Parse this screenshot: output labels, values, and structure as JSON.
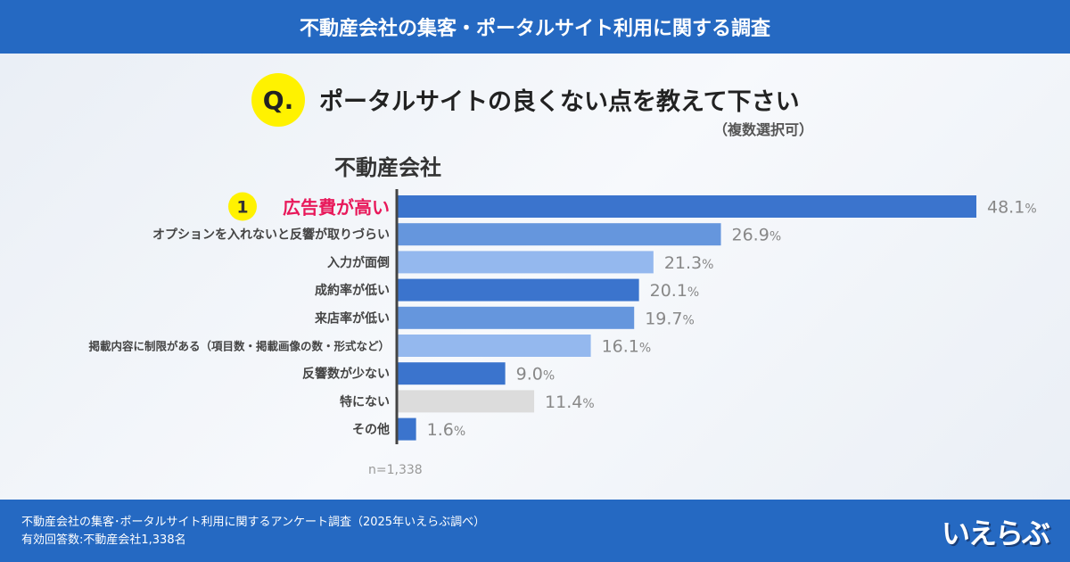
{
  "header": {
    "title": "不動産会社の集客・ポータルサイト利用に関する調査"
  },
  "question": {
    "badge": "Q.",
    "text": "ポータルサイトの良くない点を教えて下さい",
    "note": "（複数選択可）"
  },
  "group_label": "不動産会社",
  "chart_data": {
    "type": "bar",
    "orientation": "horizontal",
    "title": "ポータルサイトの良くない点を教えて下さい",
    "categories": [
      "広告費が高い",
      "オプションを入れないと反響が取りづらい",
      "入力が面倒",
      "成約率が低い",
      "来店率が低い",
      "掲載内容に制限がある（項目数・掲載画像の数・形式など）",
      "反響数が少ない",
      "特にない",
      "その他"
    ],
    "values": [
      48.1,
      26.9,
      21.3,
      20.1,
      19.7,
      16.1,
      9.0,
      11.4,
      1.6
    ],
    "unit": "%",
    "rank_badge": "1",
    "colors": [
      "#3b74cd",
      "#6596dd",
      "#94b8ee",
      "#3b74cd",
      "#6596dd",
      "#94b8ee",
      "#3b74cd",
      "#dcdcdc",
      "#3b74cd"
    ],
    "highlight_color": "#e8185a",
    "xlim": [
      0,
      48.1
    ],
    "sample_size": "n=1,338"
  },
  "footer": {
    "line1": "不動産会社の集客･ポータルサイト利用に関するアンケート調査（2025年いえらぶ調べ）",
    "line2": "有効回答数:不動産会社1,338名",
    "logo": "いえらぶ"
  }
}
